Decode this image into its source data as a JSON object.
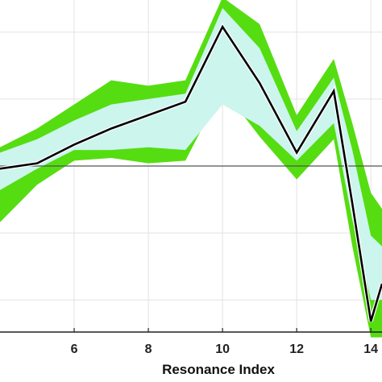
{
  "chart_data": {
    "type": "area",
    "xlabel": "Resonance Index",
    "ylabel": "",
    "title": "",
    "xlim": [
      4,
      14.3
    ],
    "ylim": [
      -3.1,
      3.1
    ],
    "x_ticks": [
      6,
      8,
      10,
      12,
      14
    ],
    "x_tick_labels": [
      "6",
      "8",
      "10",
      "12",
      "14"
    ],
    "y_gridlines": [
      -2.5,
      -1.25,
      0,
      1.25,
      2.5
    ],
    "grid": true,
    "reference_line": 0,
    "x": [
      4,
      5,
      6,
      7,
      8,
      9,
      10,
      11,
      12,
      13,
      13.5,
      14,
      14.3
    ],
    "series": [
      {
        "role": "outer_band",
        "color": "#55dd11",
        "upper": [
          0.35,
          0.7,
          1.15,
          1.6,
          1.5,
          1.6,
          3.15,
          2.65,
          0.95,
          2.0,
          0.8,
          -0.5,
          -0.8
        ],
        "lower": [
          -1.05,
          -0.35,
          0.1,
          0.15,
          0.05,
          0.1,
          1.45,
          0.55,
          -0.25,
          0.5,
          -1.5,
          -3.2,
          -3.2
        ]
      },
      {
        "role": "inner_band",
        "color": "#ccf5ee",
        "upper": [
          0.25,
          0.5,
          0.85,
          1.15,
          1.25,
          1.35,
          2.95,
          2.2,
          0.65,
          1.65,
          0.3,
          -1.3,
          -1.5
        ],
        "lower": [
          -0.45,
          -0.05,
          0.3,
          0.3,
          0.35,
          0.3,
          1.15,
          0.75,
          0.1,
          0.8,
          -1.0,
          -2.5,
          -2.5
        ]
      },
      {
        "role": "mean_line",
        "color": "#000000",
        "values": [
          -0.05,
          0.05,
          0.4,
          0.7,
          0.95,
          1.2,
          2.6,
          1.55,
          0.25,
          1.4,
          -0.7,
          -2.9,
          -2.2
        ]
      }
    ]
  }
}
